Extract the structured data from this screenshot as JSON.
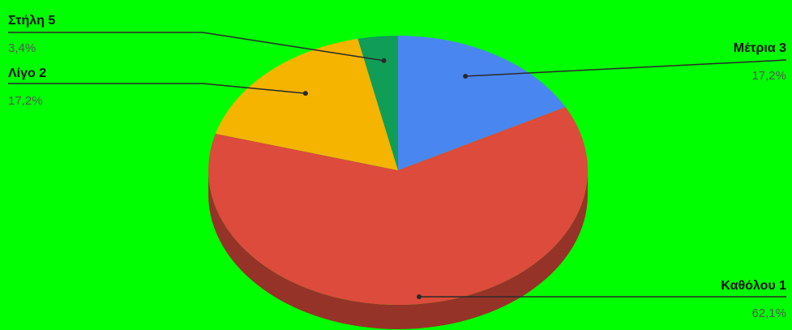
{
  "chart_data": {
    "type": "pie",
    "style": "3d",
    "slices": [
      {
        "label": "Μέτρια 3",
        "value": 17.2,
        "pct_label": "17,2%",
        "color": "#4a86f0"
      },
      {
        "label": "Καθόλου 1",
        "value": 62.1,
        "pct_label": "62,1%",
        "color": "#dc4b3b"
      },
      {
        "label": "Λίγο 2",
        "value": 17.2,
        "pct_label": "17,2%",
        "color": "#f4b400"
      },
      {
        "label": "Στήλη 5",
        "value": 3.4,
        "pct_label": "3,4%",
        "color": "#0f9d58"
      }
    ]
  },
  "colors": {
    "background": "#00ff00",
    "leader_line": "#2a2a2a"
  }
}
